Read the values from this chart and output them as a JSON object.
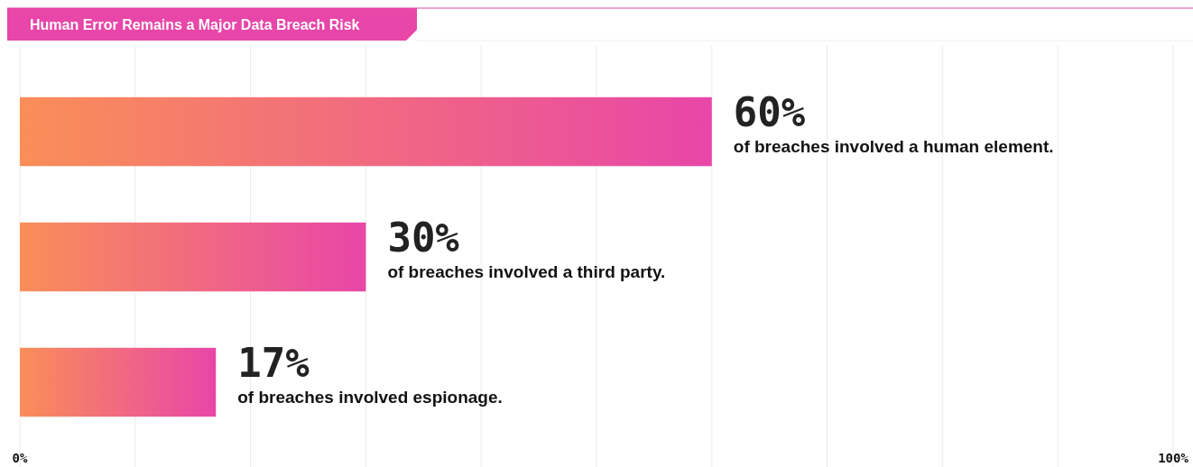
{
  "chart_data": {
    "type": "bar",
    "orientation": "horizontal",
    "title": "Human Error Remains a Major Data Breach Risk",
    "categories": [
      "of breaches involved a human element.",
      "of breaches involved a third party.",
      "of breaches involved espionage."
    ],
    "values": [
      60,
      30,
      17
    ],
    "value_labels": [
      "60%",
      "30%",
      "17%"
    ],
    "color": "#e846a8",
    "xlim": [
      0,
      100
    ],
    "xticks": [
      {
        "value": 0,
        "label": "0%"
      },
      {
        "value": 10,
        "label": null
      },
      {
        "value": 20,
        "label": null
      },
      {
        "value": 30,
        "label": null
      },
      {
        "value": 40,
        "label": null
      },
      {
        "value": 50,
        "label": null
      },
      {
        "value": 60,
        "label": null
      },
      {
        "value": 70,
        "label": null
      },
      {
        "value": 80,
        "label": null
      },
      {
        "value": 90,
        "label": null
      },
      {
        "value": 100,
        "label": "100%"
      }
    ],
    "grid": "x"
  }
}
